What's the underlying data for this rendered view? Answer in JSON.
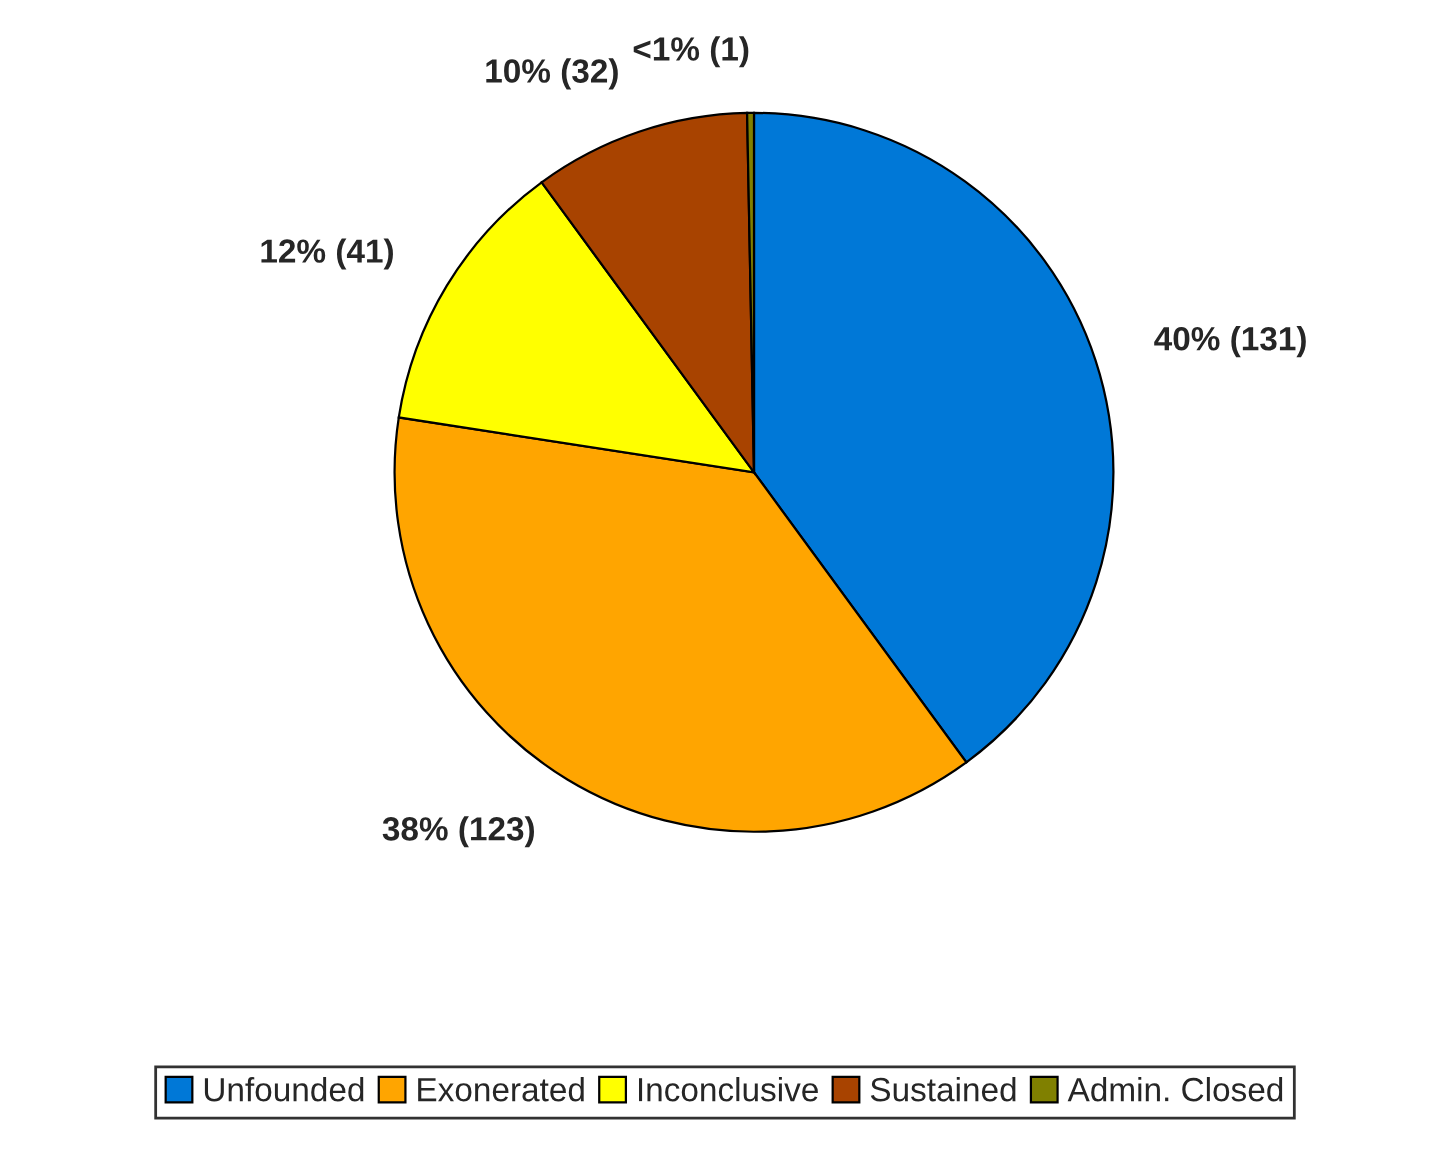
{
  "chart_data": {
    "type": "pie",
    "categories": [
      "Unfounded",
      "Exonerated",
      "Inconclusive",
      "Sustained",
      "Admin. Closed"
    ],
    "values": [
      131,
      123,
      41,
      32,
      1
    ],
    "colors": [
      "#0078d7",
      "#ffa500",
      "#ffff00",
      "#a84300",
      "#808000"
    ],
    "value_labels": [
      "40% (131)",
      "38% (123)",
      "12% (41)",
      "10% (32)",
      "<1% (1)"
    ],
    "legend": "bottom"
  }
}
